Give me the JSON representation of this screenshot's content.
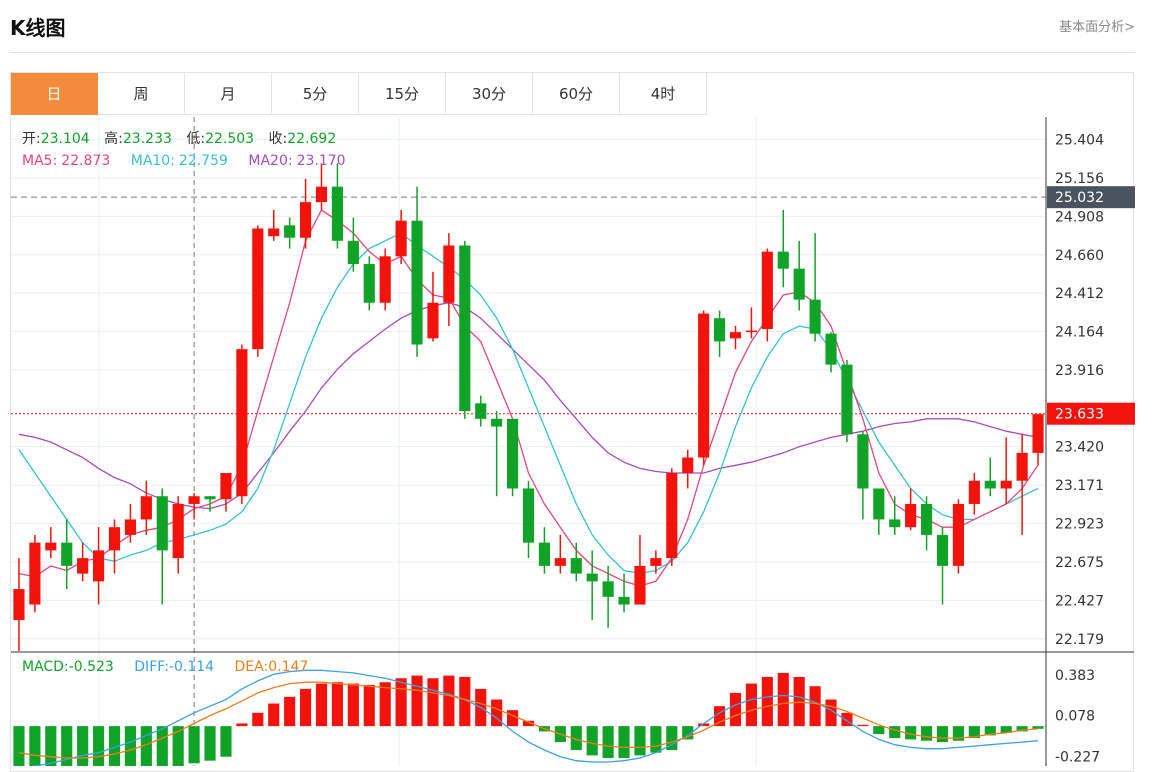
{
  "header": {
    "title": "K线图",
    "link": "基本面分析>"
  },
  "tabs": [
    {
      "label": "日",
      "active": true
    },
    {
      "label": "周",
      "active": false
    },
    {
      "label": "月",
      "active": false
    },
    {
      "label": "5分",
      "active": false
    },
    {
      "label": "15分",
      "active": false
    },
    {
      "label": "30分",
      "active": false
    },
    {
      "label": "60分",
      "active": false
    },
    {
      "label": "4时",
      "active": false
    }
  ],
  "info": {
    "open_label": "开:",
    "open": "23.104",
    "high_label": "高:",
    "high": "23.233",
    "low_label": "低:",
    "low": "22.503",
    "close_label": "收:",
    "close": "22.692",
    "ma5_label": "MA5:",
    "ma5": "22.873",
    "ma10_label": "MA10:",
    "ma10": "22.759",
    "ma20_label": "MA20:",
    "ma20": "23.170",
    "macd_label": "MACD:",
    "macd": "-0.523",
    "diff_label": "DIFF:",
    "diff": "-0.114",
    "dea_label": "DEA:",
    "dea": "0.147"
  },
  "colors": {
    "up": "#f2140c",
    "down": "#11a328",
    "ma5": "#e8457c",
    "ma10": "#35c1d4",
    "ma20": "#a84bbd",
    "diff": "#3aa0e8",
    "dea": "#f07d1a",
    "grid": "#e8eef3",
    "axis_text": "#333333",
    "price_tag_bg": "#4a5360",
    "last_tag_bg": "#f2140c"
  },
  "chart_data": {
    "type": "candlestick",
    "price_axis": {
      "ticks": [
        25.404,
        25.156,
        24.908,
        24.66,
        24.412,
        24.164,
        23.916,
        23.42,
        23.171,
        22.923,
        22.675,
        22.427,
        22.179
      ],
      "tick_labels": [
        "25.404",
        "25.156",
        "24.908",
        "24.660",
        "24.412",
        "24.164",
        "23.916",
        "23.420",
        "23.171",
        "22.923",
        "22.675",
        "22.427",
        "22.179"
      ],
      "range": [
        22.1,
        25.55
      ]
    },
    "macd_axis": {
      "tick_labels": [
        "0.383",
        "0.078",
        "-0.227"
      ],
      "ticks": [
        0.383,
        0.078,
        -0.227
      ],
      "range": [
        -0.3,
        0.55
      ]
    },
    "price_tags": [
      {
        "value": 25.032,
        "label": "25.032",
        "style": "dashed"
      },
      {
        "value": 23.633,
        "label": "23.633",
        "style": "dotted"
      }
    ],
    "candles": [
      [
        22.3,
        22.5,
        22.1,
        22.7
      ],
      [
        22.4,
        22.8,
        22.35,
        22.85
      ],
      [
        22.75,
        22.8,
        22.7,
        22.9
      ],
      [
        22.8,
        22.65,
        22.5,
        22.95
      ],
      [
        22.6,
        22.7,
        22.55,
        22.8
      ],
      [
        22.55,
        22.75,
        22.4,
        22.9
      ],
      [
        22.75,
        22.9,
        22.6,
        22.95
      ],
      [
        22.85,
        22.95,
        22.8,
        23.05
      ],
      [
        22.95,
        23.1,
        22.85,
        23.2
      ],
      [
        23.1,
        22.75,
        22.4,
        23.15
      ],
      [
        22.7,
        23.05,
        22.6,
        23.1
      ],
      [
        23.05,
        23.1,
        22.95,
        23.12
      ],
      [
        23.1,
        23.08,
        23.0,
        23.1
      ],
      [
        23.08,
        23.25,
        23.0,
        23.25
      ],
      [
        23.1,
        24.05,
        23.05,
        24.08
      ],
      [
        24.05,
        24.83,
        24.0,
        24.85
      ],
      [
        24.78,
        24.83,
        24.75,
        24.95
      ],
      [
        24.85,
        24.77,
        24.7,
        24.9
      ],
      [
        24.77,
        25.0,
        24.7,
        25.15
      ],
      [
        25.0,
        25.1,
        24.95,
        25.25
      ],
      [
        25.1,
        24.75,
        24.7,
        25.25
      ],
      [
        24.75,
        24.6,
        24.55,
        24.9
      ],
      [
        24.6,
        24.35,
        24.3,
        24.65
      ],
      [
        24.35,
        24.65,
        24.3,
        24.7
      ],
      [
        24.65,
        24.88,
        24.6,
        24.95
      ],
      [
        24.88,
        24.08,
        24.0,
        25.1
      ],
      [
        24.12,
        24.35,
        24.1,
        24.55
      ],
      [
        24.35,
        24.72,
        24.2,
        24.8
      ],
      [
        24.72,
        23.65,
        23.6,
        24.75
      ],
      [
        23.7,
        23.6,
        23.55,
        23.75
      ],
      [
        23.6,
        23.55,
        23.1,
        23.65
      ],
      [
        23.6,
        23.15,
        23.1,
        23.6
      ],
      [
        23.15,
        22.8,
        22.7,
        23.2
      ],
      [
        22.8,
        22.65,
        22.6,
        22.9
      ],
      [
        22.65,
        22.7,
        22.6,
        22.85
      ],
      [
        22.7,
        22.6,
        22.55,
        22.8
      ],
      [
        22.6,
        22.55,
        22.3,
        22.75
      ],
      [
        22.55,
        22.45,
        22.25,
        22.65
      ],
      [
        22.45,
        22.4,
        22.35,
        22.6
      ],
      [
        22.4,
        22.65,
        22.4,
        22.85
      ],
      [
        22.65,
        22.7,
        22.6,
        22.75
      ],
      [
        22.7,
        23.25,
        22.65,
        23.28
      ],
      [
        23.25,
        23.35,
        23.15,
        23.4
      ],
      [
        23.35,
        24.28,
        23.3,
        24.3
      ],
      [
        24.25,
        24.1,
        24.0,
        24.3
      ],
      [
        24.12,
        24.16,
        24.05,
        24.2
      ],
      [
        24.16,
        24.17,
        24.12,
        24.32
      ],
      [
        24.18,
        24.68,
        24.1,
        24.7
      ],
      [
        24.68,
        24.57,
        24.45,
        24.95
      ],
      [
        24.57,
        24.37,
        24.3,
        24.75
      ],
      [
        24.37,
        24.15,
        24.1,
        24.8
      ],
      [
        24.15,
        23.95,
        23.9,
        24.16
      ],
      [
        23.95,
        23.5,
        23.45,
        23.98
      ],
      [
        23.5,
        23.15,
        22.95,
        23.52
      ],
      [
        23.15,
        22.95,
        22.85,
        23.15
      ],
      [
        22.95,
        22.9,
        22.85,
        23.1
      ],
      [
        22.9,
        23.05,
        22.88,
        23.15
      ],
      [
        23.05,
        22.85,
        22.75,
        23.1
      ],
      [
        22.85,
        22.65,
        22.4,
        22.9
      ],
      [
        22.65,
        23.05,
        22.6,
        23.08
      ],
      [
        23.05,
        23.2,
        22.98,
        23.25
      ],
      [
        23.2,
        23.15,
        23.1,
        23.35
      ],
      [
        23.15,
        23.2,
        23.05,
        23.48
      ],
      [
        23.2,
        23.38,
        22.85,
        23.5
      ],
      [
        23.38,
        23.63,
        23.3,
        23.63
      ]
    ],
    "ma5": [
      22.6,
      22.58,
      22.65,
      22.62,
      22.68,
      22.7,
      22.78,
      22.85,
      22.88,
      22.9,
      22.95,
      23.02,
      23.05,
      23.1,
      23.3,
      23.65,
      24.0,
      24.35,
      24.75,
      24.95,
      24.88,
      24.8,
      24.68,
      24.6,
      24.65,
      24.5,
      24.4,
      24.38,
      24.2,
      24.1,
      23.85,
      23.6,
      23.25,
      23.05,
      22.9,
      22.75,
      22.65,
      22.6,
      22.55,
      22.52,
      22.55,
      22.7,
      22.95,
      23.3,
      23.6,
      23.9,
      24.1,
      24.25,
      24.4,
      24.42,
      24.35,
      24.2,
      23.9,
      23.6,
      23.25,
      23.05,
      22.98,
      22.95,
      22.9,
      22.9,
      22.95,
      23.0,
      23.05,
      23.15,
      23.3
    ],
    "ma10": [
      23.4,
      23.25,
      23.1,
      22.95,
      22.8,
      22.7,
      22.68,
      22.72,
      22.75,
      22.8,
      22.82,
      22.85,
      22.88,
      22.92,
      23.0,
      23.15,
      23.4,
      23.7,
      24.0,
      24.25,
      24.45,
      24.6,
      24.7,
      24.75,
      24.8,
      24.72,
      24.65,
      24.58,
      24.5,
      24.4,
      24.25,
      24.05,
      23.8,
      23.55,
      23.3,
      23.05,
      22.85,
      22.72,
      22.62,
      22.6,
      22.62,
      22.68,
      22.8,
      23.0,
      23.25,
      23.55,
      23.8,
      24.0,
      24.15,
      24.2,
      24.18,
      24.05,
      23.85,
      23.65,
      23.45,
      23.3,
      23.15,
      23.05,
      22.98,
      22.95,
      22.95,
      23.0,
      23.05,
      23.1,
      23.15
    ],
    "ma20": [
      23.5,
      23.48,
      23.45,
      23.4,
      23.35,
      23.28,
      23.22,
      23.18,
      23.12,
      23.08,
      23.05,
      23.03,
      23.02,
      23.05,
      23.12,
      23.25,
      23.38,
      23.52,
      23.65,
      23.8,
      23.92,
      24.02,
      24.1,
      24.18,
      24.25,
      24.3,
      24.33,
      24.35,
      24.32,
      24.25,
      24.15,
      24.05,
      23.95,
      23.85,
      23.72,
      23.6,
      23.48,
      23.38,
      23.32,
      23.28,
      23.26,
      23.25,
      23.25,
      23.25,
      23.28,
      23.3,
      23.32,
      23.35,
      23.38,
      23.42,
      23.45,
      23.48,
      23.5,
      23.52,
      23.55,
      23.57,
      23.58,
      23.6,
      23.6,
      23.6,
      23.58,
      23.55,
      23.52,
      23.5,
      23.48
    ],
    "macd_hist": [
      -0.3,
      -0.32,
      -0.33,
      -0.34,
      -0.35,
      -0.35,
      -0.34,
      -0.33,
      -0.32,
      -0.31,
      -0.3,
      -0.28,
      -0.26,
      -0.23,
      0.02,
      0.1,
      0.17,
      0.22,
      0.28,
      0.32,
      0.33,
      0.32,
      0.31,
      0.33,
      0.36,
      0.38,
      0.36,
      0.38,
      0.37,
      0.28,
      0.2,
      0.12,
      0.04,
      -0.04,
      -0.12,
      -0.18,
      -0.22,
      -0.24,
      -0.24,
      -0.22,
      -0.2,
      -0.18,
      -0.1,
      0.02,
      0.15,
      0.25,
      0.32,
      0.37,
      0.4,
      0.37,
      0.3,
      0.2,
      0.1,
      0.01,
      -0.06,
      -0.09,
      -0.1,
      -0.11,
      -0.12,
      -0.11,
      -0.09,
      -0.07,
      -0.05,
      -0.04,
      -0.02
    ],
    "macd_diff": [
      -0.32,
      -0.3,
      -0.28,
      -0.25,
      -0.22,
      -0.2,
      -0.16,
      -0.12,
      -0.07,
      -0.02,
      0.04,
      0.1,
      0.15,
      0.2,
      0.28,
      0.34,
      0.39,
      0.41,
      0.42,
      0.42,
      0.41,
      0.4,
      0.38,
      0.36,
      0.33,
      0.3,
      0.27,
      0.24,
      0.2,
      0.14,
      0.06,
      -0.04,
      -0.12,
      -0.18,
      -0.23,
      -0.26,
      -0.27,
      -0.27,
      -0.26,
      -0.24,
      -0.2,
      -0.14,
      -0.07,
      0.02,
      0.1,
      0.16,
      0.2,
      0.22,
      0.23,
      0.22,
      0.18,
      0.12,
      0.04,
      -0.04,
      -0.1,
      -0.14,
      -0.16,
      -0.17,
      -0.17,
      -0.16,
      -0.15,
      -0.14,
      -0.13,
      -0.12,
      -0.11
    ],
    "macd_dea": [
      -0.2,
      -0.22,
      -0.23,
      -0.24,
      -0.24,
      -0.23,
      -0.21,
      -0.18,
      -0.14,
      -0.09,
      -0.04,
      0.02,
      0.08,
      0.13,
      0.19,
      0.25,
      0.29,
      0.32,
      0.33,
      0.33,
      0.32,
      0.31,
      0.3,
      0.29,
      0.28,
      0.27,
      0.25,
      0.23,
      0.2,
      0.17,
      0.13,
      0.08,
      0.03,
      -0.02,
      -0.06,
      -0.1,
      -0.13,
      -0.15,
      -0.16,
      -0.16,
      -0.15,
      -0.12,
      -0.08,
      -0.03,
      0.03,
      0.08,
      0.12,
      0.15,
      0.17,
      0.18,
      0.17,
      0.15,
      0.11,
      0.06,
      0.01,
      -0.03,
      -0.06,
      -0.08,
      -0.09,
      -0.09,
      -0.08,
      -0.06,
      -0.05,
      -0.03,
      -0.02
    ]
  }
}
